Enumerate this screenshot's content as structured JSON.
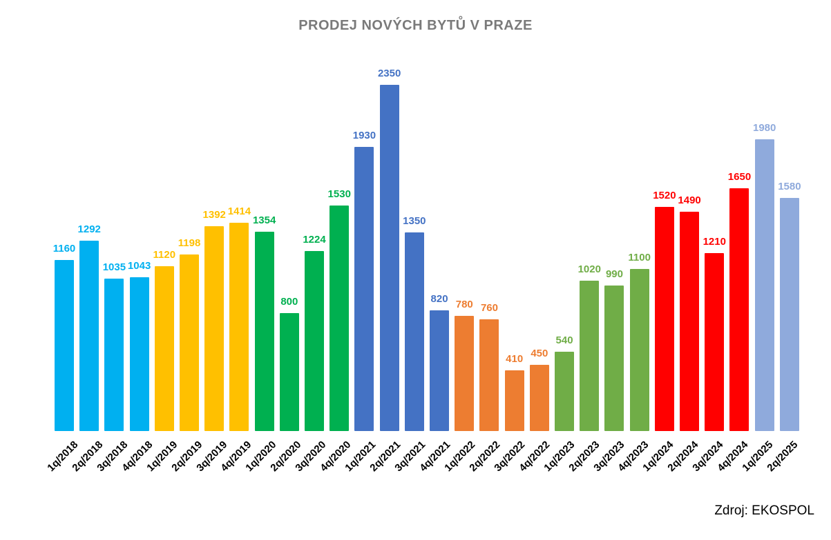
{
  "title": "PRODEJ NOVÝCH BYTŮ V PRAZE",
  "source": "Zdroj: EKOSPOL",
  "chart_data": {
    "type": "bar",
    "title": "PRODEJ NOVÝCH BYTŮ V PRAZE",
    "source": "Zdroj: EKOSPOL",
    "categories": [
      "1q/2018",
      "2q/2018",
      "3q/2018",
      "4q/2018",
      "1q/2019",
      "2q/2019",
      "3q/2019",
      "4q/2019",
      "1q/2020",
      "2q/2020",
      "3q/2020",
      "4q/2020",
      "1q/2021",
      "2q/2021",
      "3q/2021",
      "4q/2021",
      "1q/2022",
      "2q/2022",
      "3q/2022",
      "4q/2022",
      "1q/2023",
      "2q/2023",
      "3q/2023",
      "4q/2023",
      "1q/2024",
      "2q/2024",
      "3q/2024",
      "4q/2024",
      "1q/2025",
      "2q/2025"
    ],
    "values": [
      1160,
      1292,
      1035,
      1043,
      1120,
      1198,
      1392,
      1414,
      1354,
      800,
      1224,
      1530,
      1930,
      2350,
      1350,
      820,
      780,
      760,
      410,
      450,
      540,
      1020,
      990,
      1100,
      1520,
      1490,
      1210,
      1650,
      1980,
      1580
    ],
    "bar_colors": [
      "#00B0F0",
      "#00B0F0",
      "#00B0F0",
      "#00B0F0",
      "#FFC000",
      "#FFC000",
      "#FFC000",
      "#FFC000",
      "#00B050",
      "#00B050",
      "#00B050",
      "#00B050",
      "#4472C4",
      "#4472C4",
      "#4472C4",
      "#4472C4",
      "#ED7D31",
      "#ED7D31",
      "#ED7D31",
      "#ED7D31",
      "#70AD47",
      "#70AD47",
      "#70AD47",
      "#70AD47",
      "#FF0000",
      "#FF0000",
      "#FF0000",
      "#FF0000",
      "#8FAADC",
      "#8FAADC"
    ],
    "year_colors": {
      "2018": "#00B0F0",
      "2019": "#FFC000",
      "2020": "#00B050",
      "2021": "#4472C4",
      "2022": "#ED7D31",
      "2023": "#70AD47",
      "2024": "#FF0000",
      "2025": "#8FAADC"
    },
    "value_labels": true,
    "value_label_color_matches_bar": true,
    "xlabel": "",
    "ylabel": "",
    "ylim": [
      0,
      2350
    ],
    "grid": false,
    "legend": false,
    "axes_visible": false,
    "x_tick_rotation_deg": 45
  },
  "style": {
    "title_color": "#7A7A7A",
    "axis_text_color": "#000000",
    "background": "#FFFFFF"
  }
}
